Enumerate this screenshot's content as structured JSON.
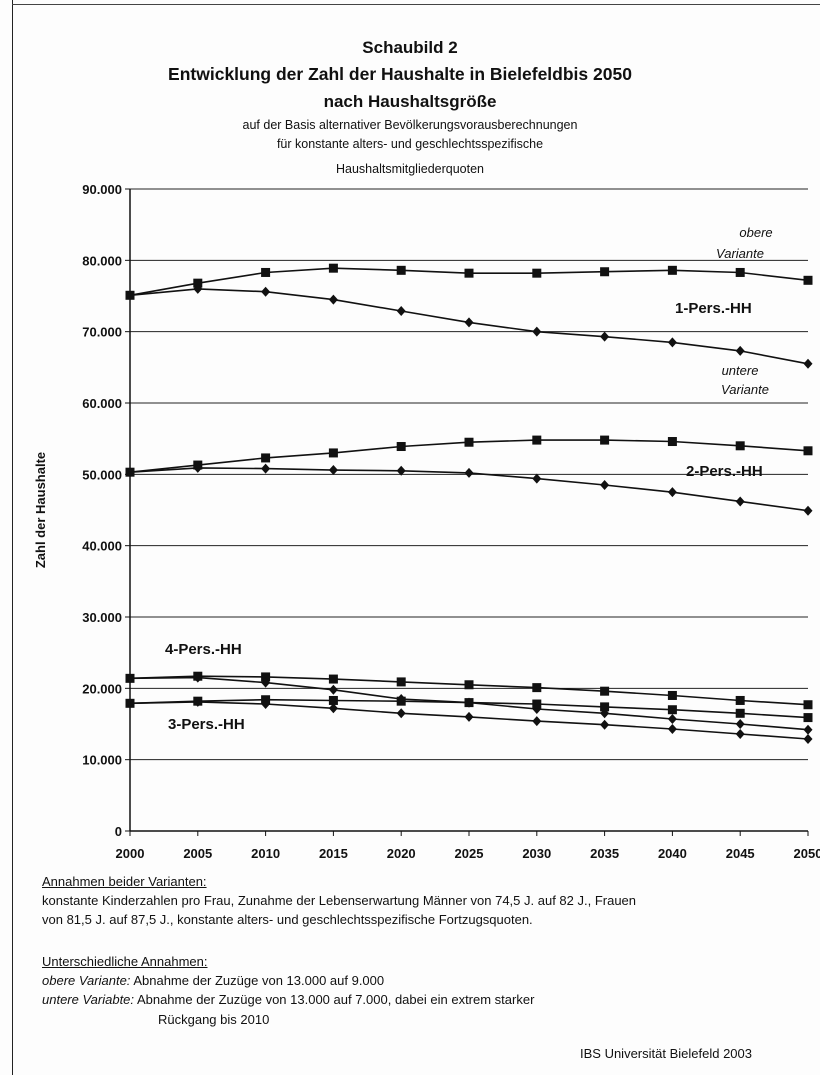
{
  "header": {
    "title": "Schaubild 2",
    "title_line2": "Entwicklung der Zahl der Haushalte in Bielefeldbis 2050",
    "title_line3": "nach Haushaltsgröße",
    "subtitle_line1": "auf der Basis alternativer Bevölkerungsvorausberechnungen",
    "subtitle_line2": "für konstante alters- und geschlechtsspezifische",
    "subtitle_line3": "Haushaltsmitgliederquoten"
  },
  "chart_data": {
    "type": "line",
    "ylabel": "Zahl der Haushalte",
    "xlabel": "",
    "x": [
      2000,
      2005,
      2010,
      2015,
      2020,
      2025,
      2030,
      2035,
      2040,
      2045,
      2050
    ],
    "x_tick_labels": [
      "2000",
      "2005",
      "2010",
      "2015",
      "2020",
      "2025",
      "2030",
      "2035",
      "2040",
      "2045",
      "2050"
    ],
    "ylim": [
      0,
      90000
    ],
    "y_ticks": [
      0,
      10000,
      20000,
      30000,
      40000,
      50000,
      60000,
      70000,
      80000,
      90000
    ],
    "y_tick_labels": [
      "0",
      "10.000",
      "20.000",
      "30.000",
      "40.000",
      "50.000",
      "60.000",
      "70.000",
      "80.000",
      "90.000"
    ],
    "grid": "horizontal",
    "series": [
      {
        "group": "1-Pers.-HH",
        "variant": "obere Variante",
        "marker": "square",
        "values": [
          75100,
          76800,
          78300,
          78900,
          78600,
          78200,
          78200,
          78400,
          78600,
          78300,
          77200
        ]
      },
      {
        "group": "1-Pers.-HH",
        "variant": "untere Variante",
        "marker": "diamond",
        "values": [
          75100,
          76000,
          75600,
          74500,
          72900,
          71300,
          70000,
          69300,
          68500,
          67300,
          65500
        ]
      },
      {
        "group": "2-Pers.-HH",
        "variant": "obere Variante",
        "marker": "square",
        "values": [
          50300,
          51300,
          52300,
          53000,
          53900,
          54500,
          54800,
          54800,
          54600,
          54000,
          53300
        ]
      },
      {
        "group": "2-Pers.-HH",
        "variant": "untere Variante",
        "marker": "diamond",
        "values": [
          50300,
          50900,
          50800,
          50600,
          50500,
          50200,
          49400,
          48500,
          47500,
          46200,
          44900
        ]
      },
      {
        "group": "4-Pers.-HH",
        "variant": "obere Variante",
        "marker": "square",
        "values": [
          21400,
          21700,
          21600,
          21300,
          20900,
          20500,
          20100,
          19600,
          19000,
          18300,
          17700
        ]
      },
      {
        "group": "4-Pers.-HH",
        "variant": "untere Variante",
        "marker": "diamond",
        "values": [
          21400,
          21500,
          20800,
          19800,
          18500,
          18000,
          17100,
          16500,
          15700,
          15000,
          14200
        ]
      },
      {
        "group": "3-Pers.-HH",
        "variant": "obere Variante",
        "marker": "square",
        "values": [
          17900,
          18200,
          18400,
          18300,
          18200,
          18000,
          17800,
          17400,
          17000,
          16500,
          15900
        ]
      },
      {
        "group": "3-Pers.-HH",
        "variant": "untere Variante",
        "marker": "diamond",
        "values": [
          17900,
          18100,
          17800,
          17200,
          16500,
          16000,
          15400,
          14900,
          14300,
          13600,
          12900
        ]
      }
    ],
    "labels": {
      "obere1": "obere",
      "obere2": "Variante",
      "hh1": "1-Pers.-HH",
      "untere1": "untere",
      "untere2": "Variante",
      "hh2": "2-Pers.-HH",
      "hh4": "4-Pers.-HH",
      "hh3": "3-Pers.-HH"
    }
  },
  "notes": {
    "heading1": "Annahmen beider Varianten:",
    "line1": "konstante Kinderzahlen pro Frau, Zunahme der Lebenserwartung Männer von 74,5 J. auf 82 J.,    Frauen",
    "line2": "von 81,5 J. auf 87,5 J., konstante alters- und geschlechtsspezifische Fortzugsquoten.",
    "heading2": "Unterschiedliche Annahmen:",
    "obere_label": "obere Variante:",
    "obere_text": "Abnahme der Zuzüge von 13.000 auf 9.000",
    "untere_label": "untere Variabte:",
    "untere_text": "Abnahme der Zuzüge von 13.000 auf 7.000, dabei ein extrem starker",
    "untere_text2": "Rückgang bis 2010"
  },
  "footer": {
    "credit": "IBS Universität Bielefeld 2003"
  }
}
